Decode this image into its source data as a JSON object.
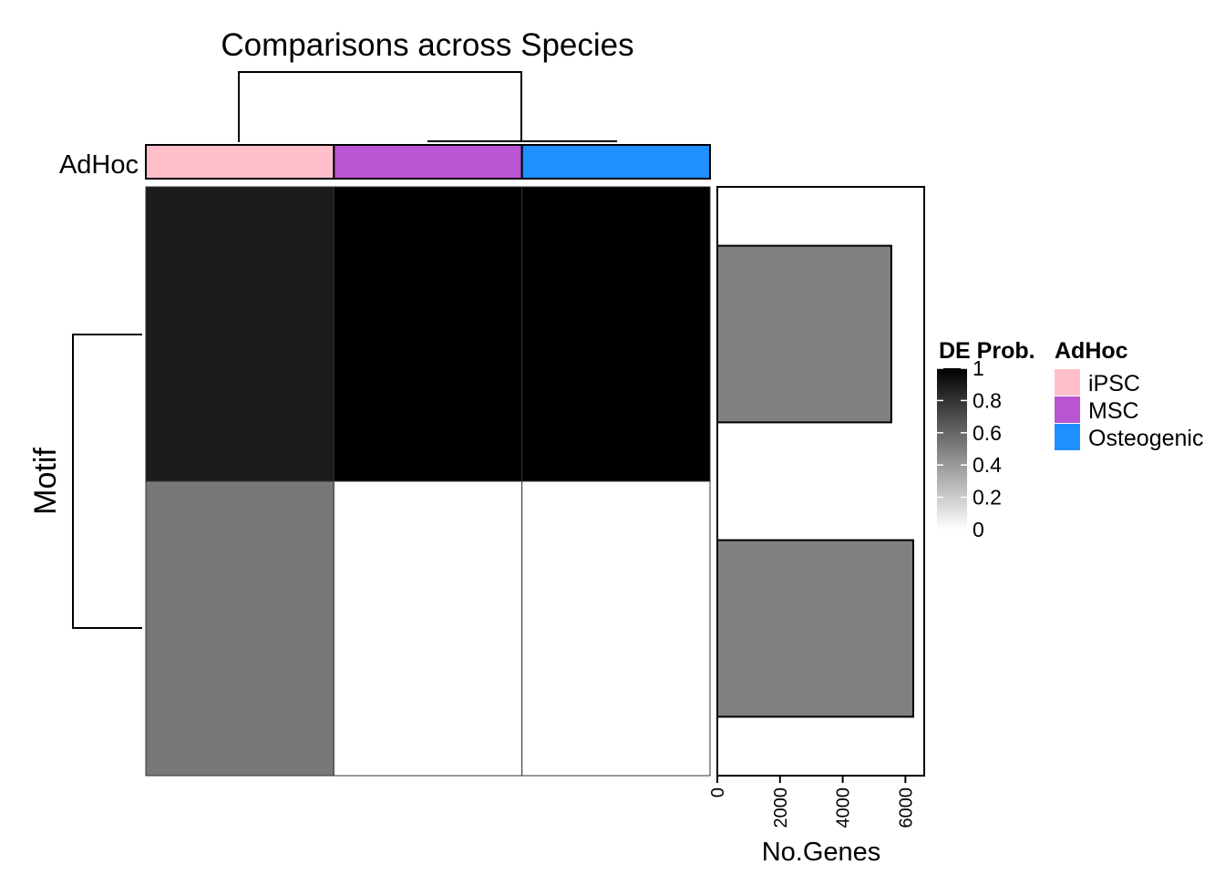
{
  "chart_data": {
    "type": "heatmap",
    "title": "Comparisons across Species",
    "annotation": {
      "name": "AdHoc",
      "categories": [
        "iPSC",
        "MSC",
        "Osteogenic"
      ],
      "colors": [
        "#FFC0CB",
        "#BA55D3",
        "#1E90FF"
      ]
    },
    "row_axis_label": "Motif",
    "columns": [
      "iPSC",
      "MSC",
      "Osteogenic"
    ],
    "matrix": [
      [
        0.89,
        1.0,
        1.0
      ],
      [
        0.53,
        0.0,
        0.0
      ]
    ],
    "colorbar": {
      "title": "DE Prob.",
      "range": [
        0,
        1
      ],
      "ticks": [
        "1",
        "0.8",
        "0.6",
        "0.4",
        "0.2",
        "0"
      ],
      "low_color": "#FFFFFF",
      "high_color": "#000000"
    },
    "bar_panel": {
      "type": "bar",
      "orientation": "horizontal",
      "xlabel": "No.Genes",
      "ticks": [
        "0",
        "2000",
        "4000",
        "6000"
      ],
      "xlim": [
        0,
        6600
      ],
      "values": [
        5550,
        6250
      ],
      "fill": "#808080"
    }
  }
}
